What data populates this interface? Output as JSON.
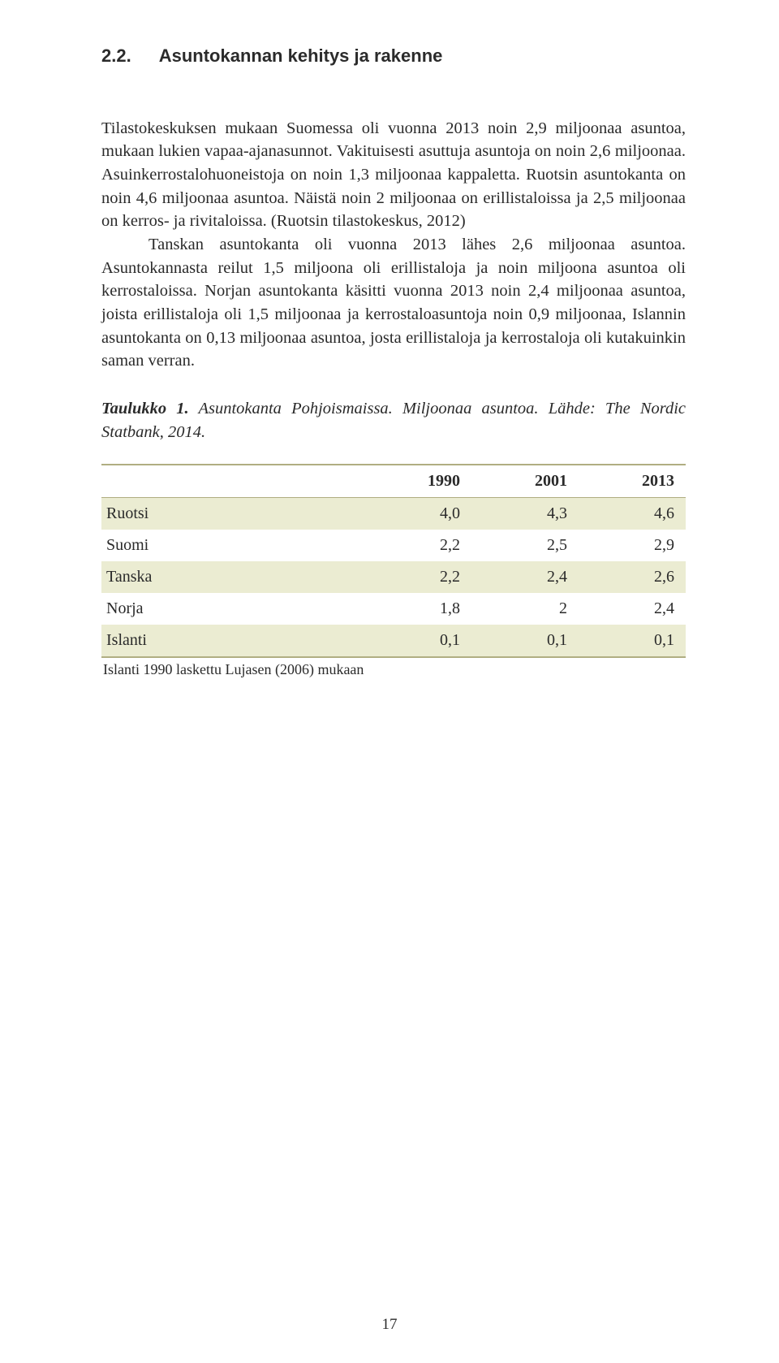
{
  "heading": {
    "number": "2.2.",
    "title": "Asuntokannan kehitys ja rakenne"
  },
  "paragraphs": {
    "p1_a": "Tilastokeskuksen mukaan Suomessa oli vuonna 2013 noin 2,9 miljoonaa asuntoa, mukaan lukien vapaa-ajanasunnot. Vakituisesti asuttuja asuntoja on noin 2,6 miljoonaa. Asuinkerrostalohuoneistoja on noin 1,3 miljoonaa kappaletta. Ruotsin asuntokanta on noin 4,6 miljoonaa asuntoa. Näistä noin 2 miljoonaa on erillistaloissa ja 2,5 miljoonaa on kerros- ja rivitaloissa. (Ruotsin tilastokeskus, 2012)",
    "p1_b": "Tanskan asuntokanta oli vuonna 2013 lähes 2,6 miljoonaa asuntoa. Asuntokannasta reilut 1,5 miljoona oli erillistaloja ja noin miljoona asuntoa oli kerrostaloissa. Norjan asuntokanta käsitti vuonna 2013 noin 2,4 miljoonaa asuntoa, joista erillistaloja oli 1,5 miljoonaa ja kerrostaloasuntoja noin 0,9 miljoonaa, Islannin asuntokanta on 0,13 miljoonaa asuntoa, josta erillistaloja ja kerrostaloja oli kutakuinkin saman verran."
  },
  "caption": {
    "lead": "Taulukko 1.",
    "rest": " Asuntokanta Pohjoismaissa. Miljoonaa asuntoa. Lähde: The Nordic Statbank, 2014."
  },
  "table": {
    "columns": [
      "1990",
      "2001",
      "2013"
    ],
    "rows": [
      {
        "label": "Ruotsi",
        "vals": [
          "4,0",
          "4,3",
          "4,6"
        ],
        "shade": true
      },
      {
        "label": "Suomi",
        "vals": [
          "2,2",
          "2,5",
          "2,9"
        ],
        "shade": false
      },
      {
        "label": "Tanska",
        "vals": [
          "2,2",
          "2,4",
          "2,6"
        ],
        "shade": true
      },
      {
        "label": "Norja",
        "vals": [
          "1,8",
          "2",
          "2,4"
        ],
        "shade": false
      },
      {
        "label": "Islanti",
        "vals": [
          "0,1",
          "0,1",
          "0,1"
        ],
        "shade": true
      }
    ],
    "note": "Islanti 1990 laskettu Lujasen (2006) mukaan",
    "colors": {
      "border": "#b0ae82",
      "shade_bg": "#ebecd2",
      "text": "#2a2a2a",
      "page_bg": "#ffffff"
    },
    "col_align": [
      "left",
      "right",
      "right",
      "right"
    ],
    "label_col_width_pct": 45
  },
  "page_number": "17"
}
